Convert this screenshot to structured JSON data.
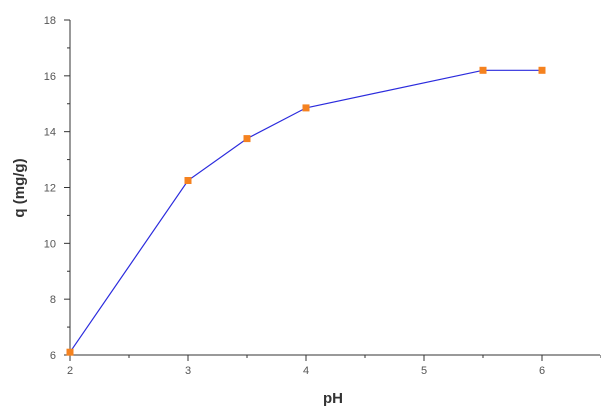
{
  "chart_data": {
    "type": "line",
    "title": "",
    "xlabel": "pH",
    "ylabel": "q (mg/g)",
    "xlim": [
      2,
      6.5
    ],
    "ylim": [
      6,
      18
    ],
    "x_ticks": [
      "2",
      "3",
      "4",
      "5",
      "6"
    ],
    "y_ticks": [
      "6",
      "8",
      "10",
      "12",
      "14",
      "16",
      "18"
    ],
    "grid": false,
    "legend": "none",
    "series": [
      {
        "x": [
          2,
          3,
          3.5,
          4,
          5.5,
          6
        ],
        "y": [
          6.1,
          12.25,
          13.75,
          14.85,
          16.2,
          16.2
        ],
        "line_color": "#2b2bdd",
        "marker_color": "#f5821f",
        "marker": "square"
      }
    ]
  }
}
